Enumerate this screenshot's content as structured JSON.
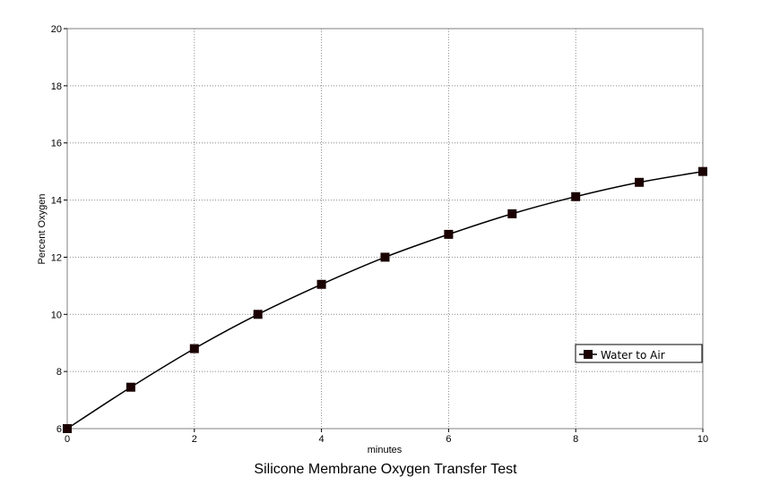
{
  "chart_data": {
    "type": "line",
    "title": "Silicone Membrane Oxygen Transfer Test",
    "xlabel": "minutes",
    "ylabel": "Percent Oxygen",
    "xlim": [
      0,
      10
    ],
    "ylim": [
      6,
      20
    ],
    "x_ticks": [
      "0",
      "2",
      "4",
      "6",
      "8",
      "10"
    ],
    "y_ticks": [
      "6",
      "8",
      "10",
      "12",
      "14",
      "16",
      "18",
      "20"
    ],
    "grid": true,
    "legend_position": "right",
    "x": [
      0,
      1,
      2,
      3,
      4,
      5,
      6,
      7,
      8,
      9,
      10
    ],
    "series": [
      {
        "name": "Water to Air",
        "values": [
          6.0,
          7.45,
          8.8,
          10.0,
          11.05,
          12.0,
          12.8,
          13.52,
          14.12,
          14.62,
          15.0
        ],
        "line_color": "#000000",
        "marker_color": "#1a0000",
        "marker": "square"
      }
    ]
  }
}
